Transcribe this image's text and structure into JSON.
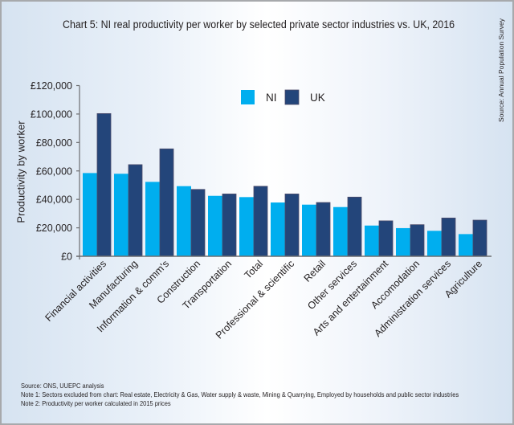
{
  "chart_data": {
    "type": "bar",
    "title": "Chart 5: NI real productivity per worker by selected private sector industries vs. UK, 2016",
    "xlabel": "",
    "ylabel": "Productivity by worker",
    "ylim": [
      0,
      120000
    ],
    "yticks": [
      0,
      20000,
      40000,
      60000,
      80000,
      100000,
      120000
    ],
    "ytick_labels": [
      "£0",
      "£20,000",
      "£40,000",
      "£60,000",
      "£80,000",
      "£100,000",
      "£120,000"
    ],
    "grid": false,
    "legend_position": "top-center",
    "categories": [
      "Financial activities",
      "Manufacturing",
      "Information & comm's",
      "Construction",
      "Transportation",
      "Total",
      "Professional & scientific",
      "Retail",
      "Other services",
      "Arts and entertainment",
      "Accomodation",
      "Administration services",
      "Agriculture"
    ],
    "series": [
      {
        "name": "NI",
        "color": "#00aeef",
        "values": [
          58500,
          58000,
          52300,
          49300,
          42500,
          41600,
          37800,
          36300,
          34600,
          21600,
          19800,
          17900,
          15600
        ]
      },
      {
        "name": "UK",
        "color": "#23457a",
        "values": [
          100300,
          64400,
          75500,
          47000,
          43800,
          49200,
          43800,
          37800,
          41600,
          24900,
          22200,
          26900,
          25400
        ]
      }
    ]
  },
  "side_source": "Source: Annual Population Survey",
  "notes": [
    "Source: ONS, UUEPC analysis",
    "Note 1: Sectors excluded from chart: Real estate, Electricity & Gas, Water supply & waste, Mining & Quarrying, Employed by households and public sector industries",
    "Note 2: Productivity per worker calculated in 2015 prices"
  ]
}
